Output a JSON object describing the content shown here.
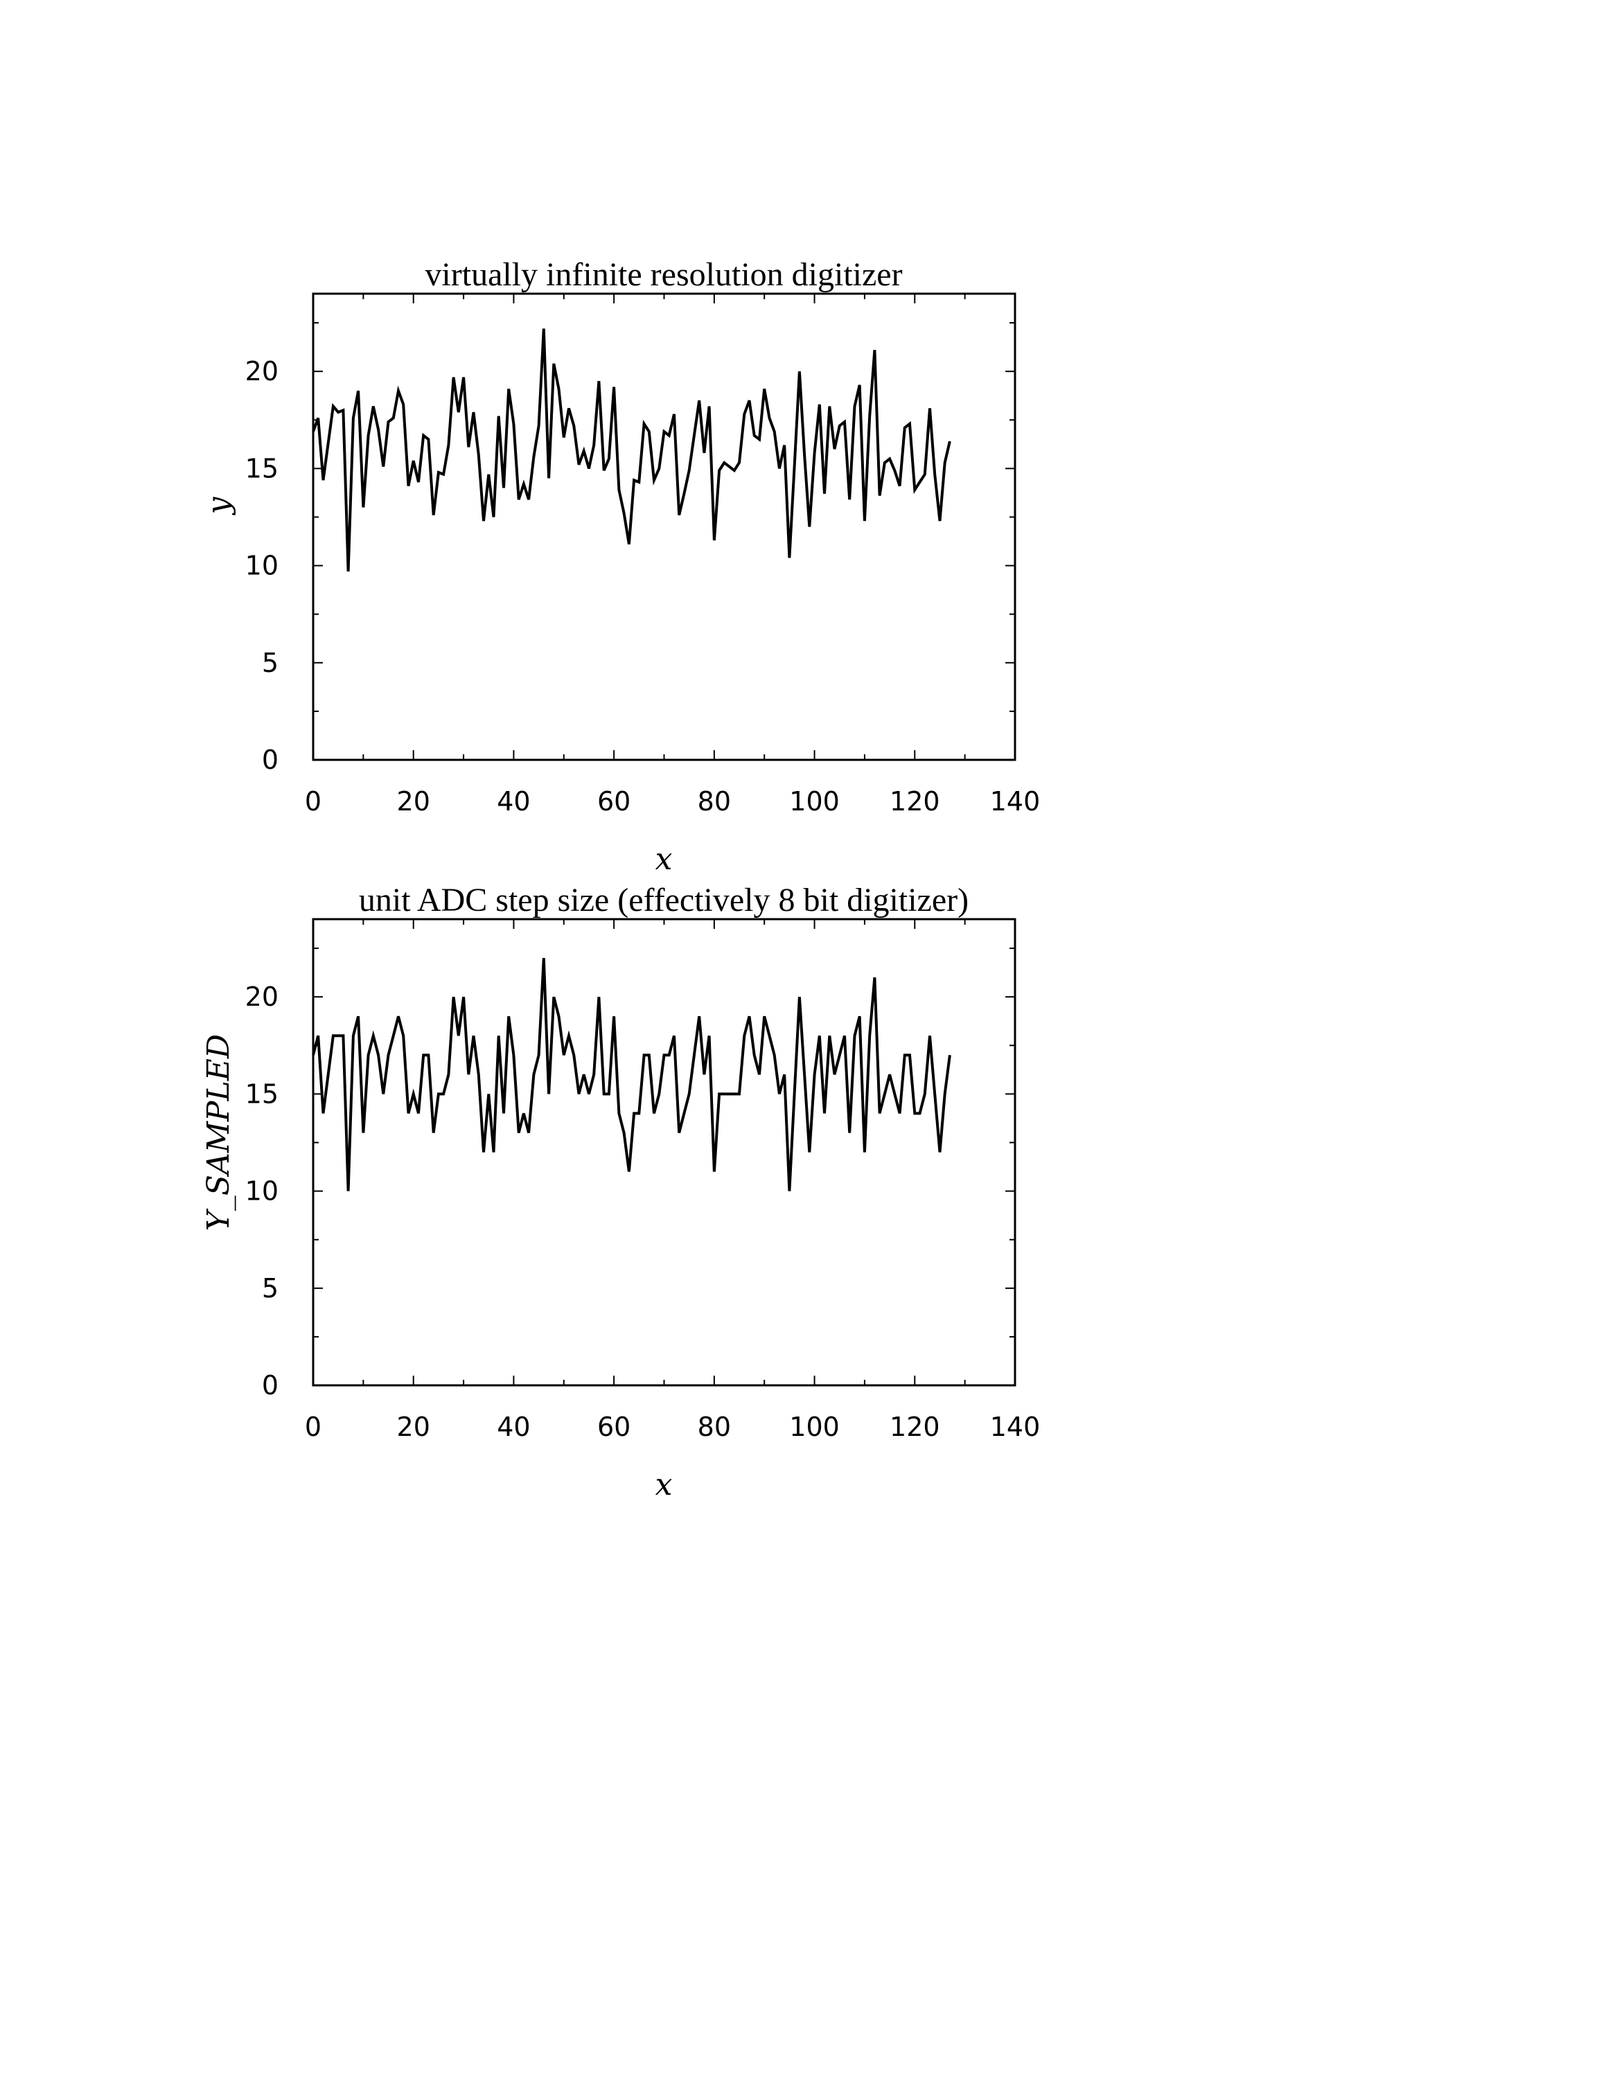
{
  "chart_data": [
    {
      "type": "line",
      "title": "virtually infinite resolution digitizer",
      "xlabel": "x",
      "ylabel": "y",
      "xlim": [
        0,
        140
      ],
      "ylim": [
        0,
        24
      ],
      "xticks": [
        0,
        20,
        40,
        60,
        80,
        100,
        120,
        140
      ],
      "yticks": [
        0,
        5,
        10,
        15,
        20
      ],
      "grid": false,
      "line_color": "#000000",
      "series": [
        {
          "x": [
            0,
            1,
            2,
            3,
            4,
            5,
            6,
            7,
            8,
            9,
            10,
            11,
            12,
            13,
            14,
            15,
            16,
            17,
            18,
            19,
            20,
            21,
            22,
            23,
            24,
            25,
            26,
            27,
            28,
            29,
            30,
            31,
            32,
            33,
            34,
            35,
            36,
            37,
            38,
            39,
            40,
            41,
            42,
            43,
            44,
            45,
            46,
            47,
            48,
            49,
            50,
            51,
            52,
            53,
            54,
            55,
            56,
            57,
            58,
            59,
            60,
            61,
            62,
            63,
            64,
            65,
            66,
            67,
            68,
            69,
            70,
            71,
            72,
            73,
            74,
            75,
            76,
            77,
            78,
            79,
            80,
            81,
            82,
            83,
            84,
            85,
            86,
            87,
            88,
            89,
            90,
            91,
            92,
            93,
            94,
            95,
            96,
            97,
            98,
            99,
            100,
            101,
            102,
            103,
            104,
            105,
            106,
            107,
            108,
            109,
            110,
            111,
            112,
            113,
            114,
            115,
            116,
            117,
            118,
            119,
            120,
            121,
            122,
            123,
            124,
            125,
            126,
            127
          ],
          "values": [
            16.9,
            17.6,
            14.4,
            16.3,
            18.2,
            17.9,
            18.0,
            9.7,
            17.6,
            19.0,
            13.0,
            16.7,
            18.2,
            17.0,
            15.1,
            17.4,
            17.6,
            19.0,
            18.3,
            14.1,
            15.4,
            14.3,
            16.7,
            16.5,
            12.6,
            14.8,
            14.7,
            16.2,
            19.7,
            17.9,
            19.7,
            16.1,
            17.9,
            15.7,
            12.3,
            14.7,
            12.5,
            17.7,
            14.0,
            19.1,
            17.3,
            13.4,
            14.2,
            13.4,
            15.6,
            17.2,
            22.2,
            14.5,
            20.4,
            19.1,
            16.6,
            18.1,
            17.2,
            15.2,
            15.9,
            15.0,
            16.2,
            19.5,
            14.9,
            15.5,
            19.2,
            13.9,
            12.7,
            11.1,
            14.4,
            14.3,
            17.3,
            16.9,
            14.4,
            15.0,
            16.9,
            16.7,
            17.8,
            12.6,
            13.7,
            14.9,
            16.7,
            18.5,
            15.8,
            18.2,
            11.3,
            14.9,
            15.3,
            15.1,
            14.9,
            15.3,
            17.8,
            18.5,
            16.7,
            16.5,
            19.1,
            17.6,
            16.9,
            15.0,
            16.2,
            10.4,
            15.1,
            20.0,
            15.7,
            12.0,
            15.8,
            18.3,
            13.7,
            18.2,
            16.0,
            17.2,
            17.4,
            13.4,
            18.2,
            19.3,
            12.3,
            17.7,
            21.1,
            13.6,
            15.3,
            15.5,
            14.9,
            14.1,
            17.1,
            17.3,
            13.9,
            14.3,
            14.7,
            18.1,
            14.7,
            12.3,
            15.3,
            16.4
          ]
        }
      ]
    },
    {
      "type": "line",
      "title": "unit ADC step size (effectively 8 bit digitizer)",
      "xlabel": "x",
      "ylabel": "Y_SAMPLED",
      "xlim": [
        0,
        140
      ],
      "ylim": [
        0,
        24
      ],
      "xticks": [
        0,
        20,
        40,
        60,
        80,
        100,
        120,
        140
      ],
      "yticks": [
        0,
        5,
        10,
        15,
        20
      ],
      "grid": false,
      "line_color": "#000000",
      "series": [
        {
          "x": [
            0,
            1,
            2,
            3,
            4,
            5,
            6,
            7,
            8,
            9,
            10,
            11,
            12,
            13,
            14,
            15,
            16,
            17,
            18,
            19,
            20,
            21,
            22,
            23,
            24,
            25,
            26,
            27,
            28,
            29,
            30,
            31,
            32,
            33,
            34,
            35,
            36,
            37,
            38,
            39,
            40,
            41,
            42,
            43,
            44,
            45,
            46,
            47,
            48,
            49,
            50,
            51,
            52,
            53,
            54,
            55,
            56,
            57,
            58,
            59,
            60,
            61,
            62,
            63,
            64,
            65,
            66,
            67,
            68,
            69,
            70,
            71,
            72,
            73,
            74,
            75,
            76,
            77,
            78,
            79,
            80,
            81,
            82,
            83,
            84,
            85,
            86,
            87,
            88,
            89,
            90,
            91,
            92,
            93,
            94,
            95,
            96,
            97,
            98,
            99,
            100,
            101,
            102,
            103,
            104,
            105,
            106,
            107,
            108,
            109,
            110,
            111,
            112,
            113,
            114,
            115,
            116,
            117,
            118,
            119,
            120,
            121,
            122,
            123,
            124,
            125,
            126,
            127
          ],
          "values": [
            17,
            18,
            14,
            16,
            18,
            18,
            18,
            10,
            18,
            19,
            13,
            17,
            18,
            17,
            15,
            17,
            18,
            19,
            18,
            14,
            15,
            14,
            17,
            17,
            13,
            15,
            15,
            16,
            20,
            18,
            20,
            16,
            18,
            16,
            12,
            15,
            12,
            18,
            14,
            19,
            17,
            13,
            14,
            13,
            16,
            17,
            22,
            15,
            20,
            19,
            17,
            18,
            17,
            15,
            16,
            15,
            16,
            20,
            15,
            15,
            19,
            14,
            13,
            11,
            14,
            14,
            17,
            17,
            14,
            15,
            17,
            17,
            18,
            13,
            14,
            15,
            17,
            19,
            16,
            18,
            11,
            15,
            15,
            15,
            15,
            15,
            18,
            19,
            17,
            16,
            19,
            18,
            17,
            15,
            16,
            10,
            15,
            20,
            16,
            12,
            16,
            18,
            14,
            18,
            16,
            17,
            18,
            13,
            18,
            19,
            12,
            18,
            21,
            14,
            15,
            16,
            15,
            14,
            17,
            17,
            14,
            14,
            15,
            18,
            15,
            12,
            15,
            17
          ]
        }
      ]
    }
  ]
}
